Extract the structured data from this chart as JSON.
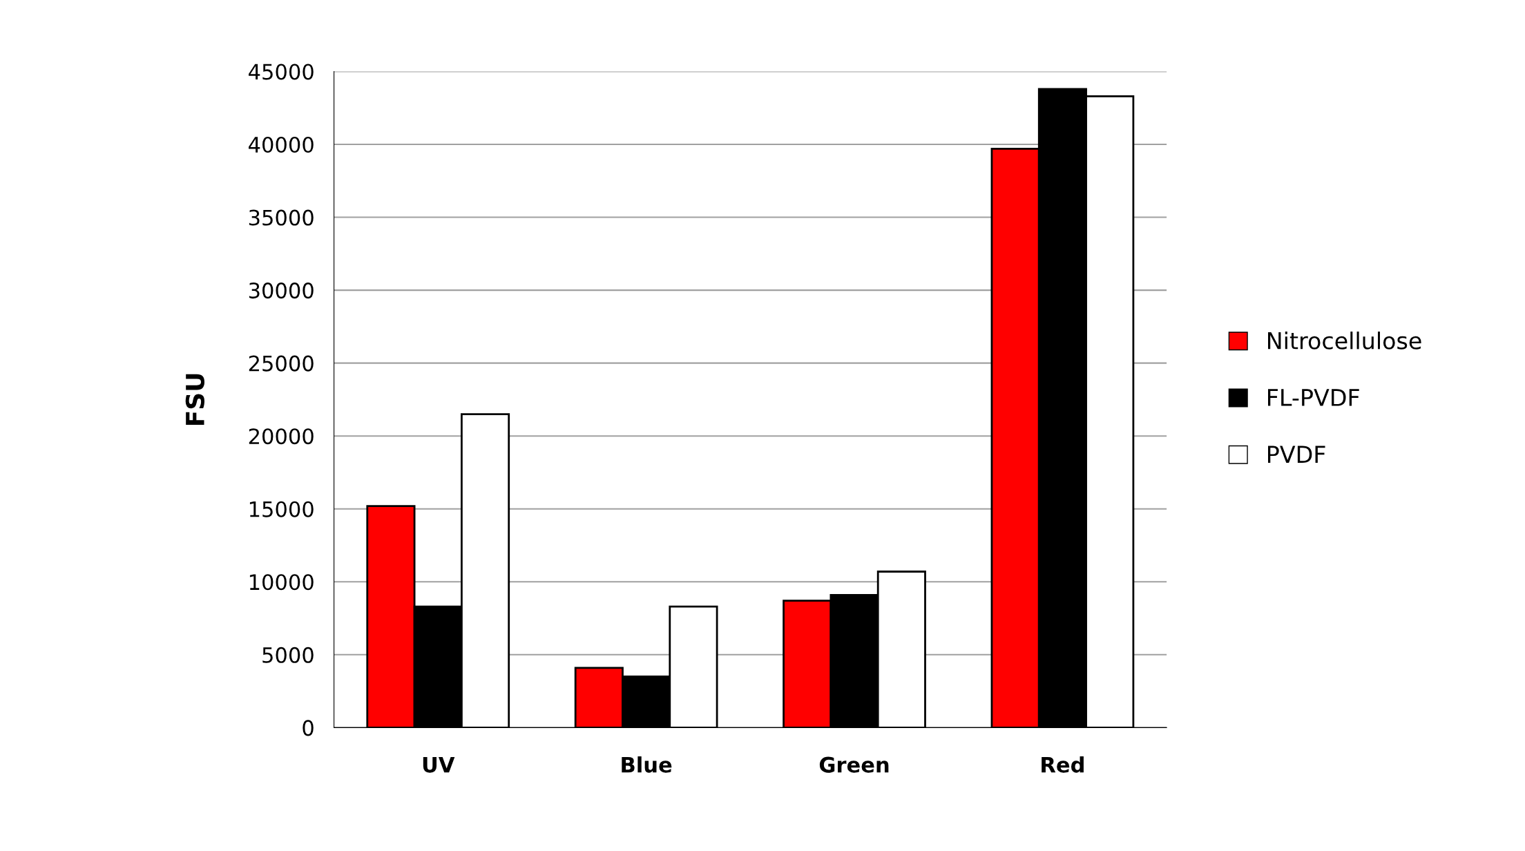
{
  "chart_data": {
    "type": "bar",
    "ylabel": "FSU",
    "categories": [
      "UV",
      "Blue",
      "Green",
      "Red"
    ],
    "series": [
      {
        "name": "Nitrocellulose",
        "color": "#ff0000",
        "values": [
          15200,
          4100,
          8700,
          39700
        ]
      },
      {
        "name": "FL-PVDF",
        "color": "#000000",
        "values": [
          8300,
          3500,
          9100,
          43800
        ]
      },
      {
        "name": "PVDF",
        "color": "#ffffff",
        "values": [
          21500,
          8300,
          10700,
          43300
        ]
      }
    ],
    "ylim": [
      0,
      45000
    ],
    "yticks": [
      0,
      5000,
      10000,
      15000,
      20000,
      25000,
      30000,
      35000,
      40000,
      45000
    ],
    "grid": "y",
    "legend": "right"
  }
}
